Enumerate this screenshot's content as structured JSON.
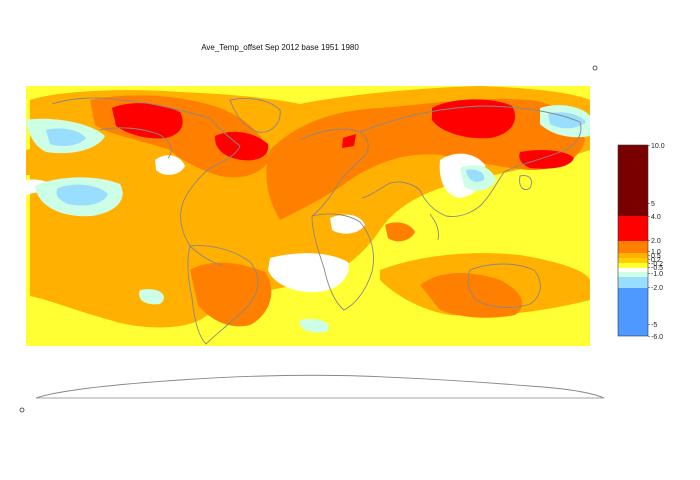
{
  "title": "Ave_Temp_offset Sep 2012  base 1951 1980",
  "legend": {
    "labels": [
      "10.0",
      "5",
      "4.0",
      "2.0",
      "1.0",
      "0.5",
      "0.2",
      "-0.2",
      "-0.5",
      "-1.0",
      "-2.0",
      "-5",
      "-6.0"
    ],
    "bins": [
      {
        "from": 5,
        "to": 10,
        "color": "#7a0000"
      },
      {
        "from": 4,
        "to": 5,
        "color": "#7a0000"
      },
      {
        "from": 2,
        "to": 4,
        "color": "#ff0000"
      },
      {
        "from": 1,
        "to": 2,
        "color": "#ff8000"
      },
      {
        "from": 0.5,
        "to": 1,
        "color": "#ffb000"
      },
      {
        "from": 0.2,
        "to": 0.5,
        "color": "#ffd000"
      },
      {
        "from": -0.2,
        "to": 0.2,
        "color": "#ffff33"
      },
      {
        "from": -0.5,
        "to": -0.2,
        "color": "#ffffff"
      },
      {
        "from": -1,
        "to": -0.5,
        "color": "#ccffe6"
      },
      {
        "from": -2,
        "to": -1,
        "color": "#99ddff"
      },
      {
        "from": -6,
        "to": -2,
        "color": "#4d99ff"
      }
    ]
  },
  "colors": {
    "coast": "#888888",
    "land_none": "#ffffff",
    "anomaly_0": "#ffff33",
    "anomaly_1": "#ffb000",
    "anomaly_2": "#ff8000",
    "anomaly_3": "#ff0000",
    "anomaly_neg1": "#ccffe6",
    "anomaly_neg2": "#99ddff"
  }
}
